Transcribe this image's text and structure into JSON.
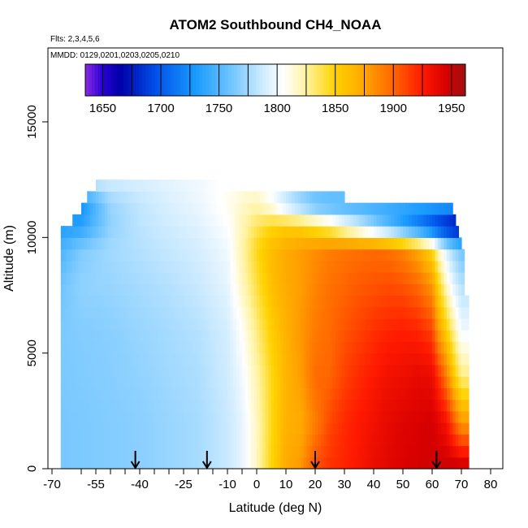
{
  "chart_data": {
    "type": "heatmap",
    "title": "ATOM2 Southbound CH4_NOAA",
    "flights_note": "Flts: 2,3,4,5,6",
    "dates_note": "MMDD: 0129,0201,0203,0205,0210",
    "xlabel": "Latitude (deg N)",
    "ylabel": "Altitude (m)",
    "xlim": [
      -70,
      80
    ],
    "ylim": [
      0,
      18000
    ],
    "x_ticks": [
      -70,
      -55,
      -40,
      -25,
      -10,
      0,
      10,
      20,
      30,
      40,
      50,
      60,
      70,
      80
    ],
    "x_tick_labels": [
      "-70",
      "-55",
      "-40",
      "-25",
      "-10",
      "0",
      "10",
      "20",
      "30",
      "40",
      "50",
      "60",
      "70",
      "80"
    ],
    "x_minor_ticks": [
      -60,
      -50,
      -45,
      -35,
      -30,
      -20,
      -15,
      -5
    ],
    "y_ticks": [
      0,
      5000,
      10000,
      15000
    ],
    "y_tick_labels": [
      "0",
      "5000",
      "10000",
      "15000"
    ],
    "colorbar": {
      "min": 1635,
      "max": 1962,
      "tick_values": [
        1650,
        1700,
        1750,
        1800,
        1850,
        1900,
        1950
      ],
      "tick_labels": [
        "1650",
        "1700",
        "1750",
        "1800",
        "1850",
        "1900",
        "1950"
      ],
      "color_stops": [
        [
          1635,
          "#8a2be2"
        ],
        [
          1650,
          "#2a00d5"
        ],
        [
          1665,
          "#0000a8"
        ],
        [
          1695,
          "#0050e8"
        ],
        [
          1730,
          "#1a9bff"
        ],
        [
          1760,
          "#6ec4ff"
        ],
        [
          1785,
          "#c6e8ff"
        ],
        [
          1805,
          "#ffffff"
        ],
        [
          1825,
          "#fff3a0"
        ],
        [
          1850,
          "#ffd200"
        ],
        [
          1875,
          "#ffa500"
        ],
        [
          1900,
          "#ff6600"
        ],
        [
          1925,
          "#ff1a00"
        ],
        [
          1945,
          "#d80000"
        ],
        [
          1962,
          "#a01010"
        ]
      ]
    },
    "flight_markers_lat": [
      -41.5,
      -17,
      20,
      61.5
    ],
    "field": {
      "description": "CH4 mixing ratio (ppb) by latitude and altitude",
      "lat_nodes": [
        -70,
        -60,
        -50,
        -40,
        -30,
        -20,
        -10,
        -5,
        0,
        5,
        10,
        15,
        20,
        25,
        30,
        35,
        40,
        45,
        50,
        55,
        60,
        62,
        65,
        68,
        70,
        72
      ],
      "alt_nodes": [
        0,
        2000,
        4000,
        6000,
        8000,
        9500,
        10500,
        11500,
        12500
      ],
      "values": [
        [
          1762,
          1764,
          1766,
          1768,
          1772,
          1776,
          1786,
          1796,
          1818,
          1848,
          1872,
          1880,
          1908,
          1918,
          1922,
          1928,
          1935,
          1940,
          1944,
          1946,
          1948,
          1948,
          1950,
          1952,
          1952,
          1952
        ],
        [
          1762,
          1764,
          1766,
          1768,
          1772,
          1776,
          1786,
          1796,
          1818,
          1846,
          1868,
          1872,
          1890,
          1910,
          1920,
          1926,
          1932,
          1938,
          1942,
          1944,
          1946,
          1940,
          1930,
          1900,
          1880,
          1880
        ],
        [
          1763,
          1765,
          1767,
          1770,
          1774,
          1778,
          1788,
          1800,
          1822,
          1846,
          1866,
          1878,
          1898,
          1900,
          1912,
          1920,
          1926,
          1932,
          1934,
          1938,
          1936,
          1920,
          1890,
          1850,
          1830,
          1830
        ],
        [
          1763,
          1766,
          1768,
          1772,
          1776,
          1780,
          1790,
          1806,
          1830,
          1852,
          1868,
          1880,
          1892,
          1898,
          1906,
          1912,
          1918,
          1922,
          1924,
          1922,
          1912,
          1880,
          1850,
          1820,
          1800,
          1800
        ],
        [
          1755,
          1770,
          1772,
          1776,
          1780,
          1786,
          1796,
          1818,
          1840,
          1860,
          1872,
          1878,
          1888,
          1896,
          1900,
          1904,
          1906,
          1908,
          1906,
          1898,
          1880,
          1850,
          1815,
          1790,
          1780,
          1780
        ],
        [
          1740,
          1765,
          1775,
          1780,
          1785,
          1790,
          1800,
          1822,
          1846,
          1862,
          1872,
          1878,
          1884,
          1890,
          1894,
          1896,
          1898,
          1896,
          1888,
          1874,
          1848,
          1820,
          1790,
          1770,
          1760,
          1760
        ],
        [
          1730,
          1735,
          1770,
          1782,
          1788,
          1794,
          1804,
          1820,
          1836,
          1848,
          1852,
          1850,
          1840,
          1828,
          1808,
          1790,
          1770,
          1750,
          1730,
          1710,
          1690,
          1680,
          1670,
          1660,
          1660,
          1660
        ],
        [
          1720,
          1725,
          1772,
          1784,
          1792,
          1798,
          1808,
          1816,
          1820,
          1805,
          1780,
          1760,
          1745,
          1740,
          1740,
          1740,
          1740,
          1740,
          1740,
          1740,
          1740,
          1740,
          1740,
          1740,
          1740,
          1740
        ],
        [
          1790,
          1790,
          1790,
          1792,
          1796,
          1800,
          1806,
          1806,
          1806,
          1806,
          1806,
          1806,
          1806,
          1806,
          1806,
          1806,
          1806,
          1806,
          1806,
          1806,
          1806,
          1806,
          1806,
          1806,
          1806,
          1806
        ]
      ],
      "coverage": [
        {
          "alt_bottom": 0,
          "alt_top": 7500,
          "lat_south": -67,
          "lat_north": 72.5
        },
        {
          "alt_bottom": 7500,
          "alt_top": 9500,
          "lat_south": -67,
          "lat_north": 71
        },
        {
          "alt_bottom": 9500,
          "alt_top": 10000,
          "lat_south": -67,
          "lat_north": 70
        },
        {
          "alt_bottom": 10000,
          "alt_top": 10500,
          "lat_south": -67,
          "lat_north": 69
        },
        {
          "alt_bottom": 10500,
          "alt_top": 11000,
          "lat_south": -63,
          "lat_north": 68
        },
        {
          "alt_bottom": 11000,
          "alt_top": 11500,
          "lat_south": -60,
          "lat_north": 67
        },
        {
          "alt_bottom": 11500,
          "alt_top": 12000,
          "lat_south": -58,
          "lat_north": 30
        },
        {
          "alt_bottom": 12000,
          "alt_top": 12500,
          "lat_south": -55,
          "lat_north": -12
        }
      ]
    }
  }
}
